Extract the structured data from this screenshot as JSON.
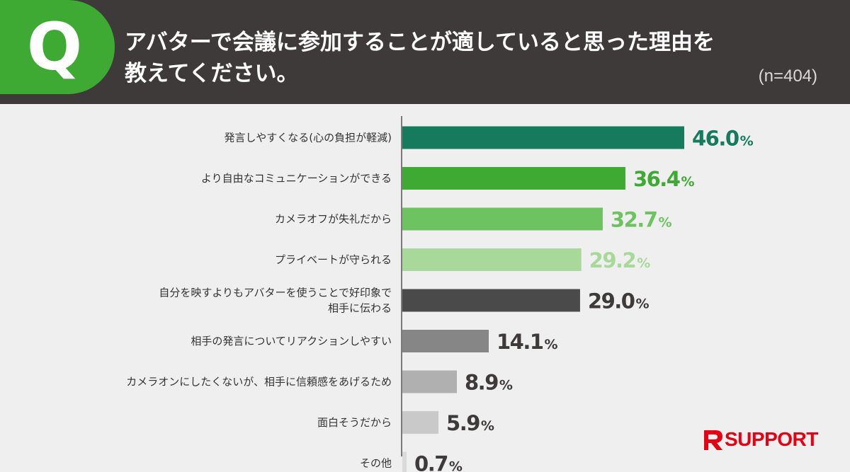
{
  "header": {
    "badge": "Q",
    "question_line1": "アバターで会議に参加することが適していると思った理由を",
    "question_line2": "教えてください。",
    "sample_size": "(n=404)"
  },
  "chart_data": {
    "type": "bar",
    "orientation": "horizontal",
    "categories": [
      [
        "発言しやすくなる(心の負担が軽減)"
      ],
      [
        "より自由なコミュニケーションができる"
      ],
      [
        "カメラオフが失礼だから"
      ],
      [
        "プライベートが守られる"
      ],
      [
        "自分を映すよりもアバターを使うことで好印象で",
        "相手に伝わる"
      ],
      [
        "相手の発言についてリアクションしやすい"
      ],
      [
        "カメラオンにしたくないが、相手に信頼感をあげるため"
      ],
      [
        "面白そうだから"
      ],
      [
        "その他"
      ]
    ],
    "values": [
      46.0,
      36.4,
      32.7,
      29.2,
      29.0,
      14.1,
      8.9,
      5.9,
      0.7
    ],
    "value_unit": "%",
    "bar_colors": [
      "#167b5c",
      "#3eaa34",
      "#6dc35f",
      "#a8d89a",
      "#4a4a4a",
      "#868686",
      "#b0b0b0",
      "#c9c9c9",
      "#dadada"
    ],
    "label_colors": [
      "#167b5c",
      "#3eaa34",
      "#6dc35f",
      "#a8d89a",
      "#3e3a39",
      "#3e3a39",
      "#3e3a39",
      "#3e3a39",
      "#3e3a39"
    ],
    "xlim": [
      0,
      46.0
    ],
    "grid": false
  },
  "logo": {
    "text": "SUPPORT",
    "color": "#e60012"
  }
}
